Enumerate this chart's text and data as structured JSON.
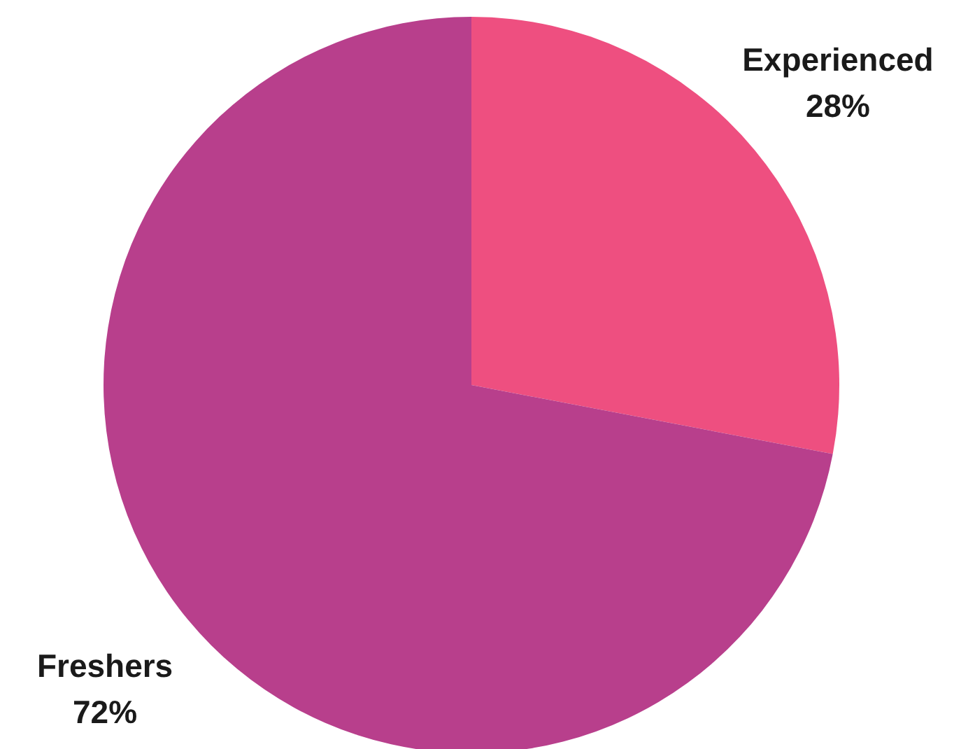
{
  "chart_data": {
    "type": "pie",
    "categories": [
      "Experienced",
      "Freshers"
    ],
    "values": [
      28,
      72
    ],
    "colors": [
      "#ee4f80",
      "#b83f8c"
    ],
    "value_labels": [
      "28%",
      "72%"
    ]
  }
}
